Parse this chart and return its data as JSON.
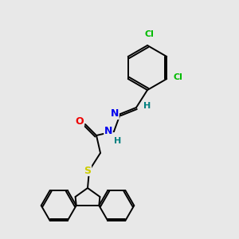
{
  "background_color": "#e8e8e8",
  "bond_color": "#000000",
  "atom_colors": {
    "Cl": "#00bb00",
    "N": "#0000ee",
    "O": "#ee0000",
    "S": "#cccc00",
    "H": "#008080",
    "C": "#000000"
  },
  "figsize": [
    3.0,
    3.0
  ],
  "dpi": 100
}
